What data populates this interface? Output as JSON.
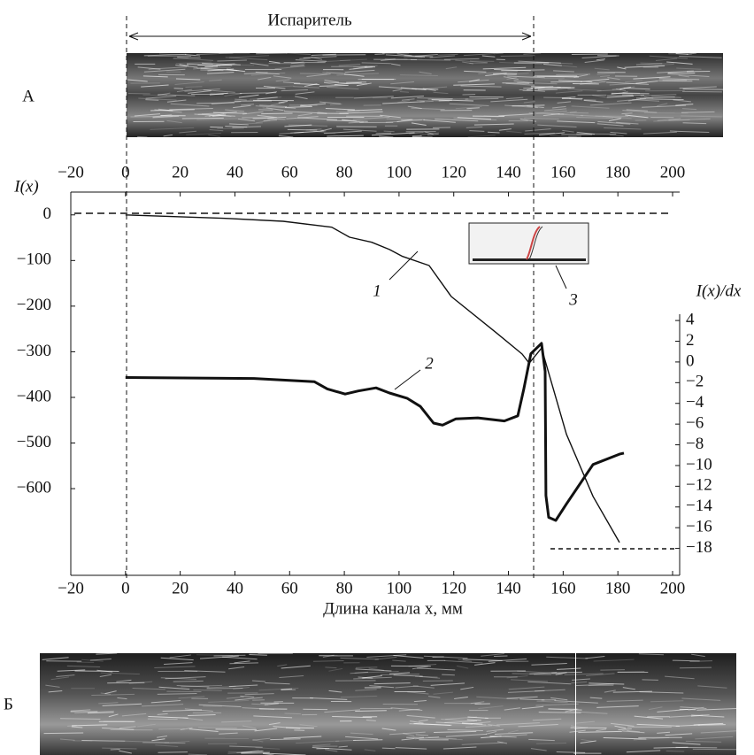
{
  "chart_data": {
    "type": "line",
    "evaporator_label": "Испаритель",
    "panel_top_label": "А",
    "panel_bottom_label": "Б",
    "annotations": [
      "3"
    ],
    "xlabel": "Длина канала x, мм",
    "ylabel": "I(x)",
    "y2label": "I(x)/dx",
    "xlim": [
      -20,
      200
    ],
    "xticks": [
      {
        "value": -20,
        "label": "−20"
      },
      0,
      20,
      40,
      60,
      80,
      100,
      120,
      140,
      160,
      180,
      200
    ],
    "x2ticks": [
      {
        "value": -20,
        "label": "−20"
      },
      0,
      20,
      40,
      60,
      80,
      100,
      120,
      140,
      160,
      180,
      200
    ],
    "ylim": [
      -790,
      50
    ],
    "yticks": [
      0,
      {
        "value": -100,
        "label": "−100"
      },
      {
        "value": -200,
        "label": "−200"
      },
      {
        "value": -300,
        "label": "−300"
      },
      {
        "value": -400,
        "label": "−400"
      },
      {
        "value": -500,
        "label": "−500"
      },
      {
        "value": -600,
        "label": "−600"
      }
    ],
    "y2lim": [
      -20.6,
      16.4
    ],
    "y2ticks": [
      4,
      2,
      0,
      {
        "value": -2,
        "label": "−2"
      },
      {
        "value": -4,
        "label": "−4"
      },
      {
        "value": -6,
        "label": "−6"
      },
      {
        "value": -8,
        "label": "−8"
      },
      {
        "value": -10,
        "label": "−10"
      },
      {
        "value": -12,
        "label": "−12"
      },
      {
        "value": -14,
        "label": "−14"
      },
      {
        "value": -16,
        "label": "−16"
      },
      {
        "value": -18,
        "label": "−18"
      }
    ],
    "series": [
      {
        "name": "1",
        "color": "#111111",
        "x": [
          0,
          18.8,
          38.2,
          57.6,
          75.4,
          81.9,
          90.0,
          96.5,
          101.3,
          111.0,
          119.1,
          135.3,
          145.0,
          147.6,
          152.1,
          161.2,
          170.9,
          180.6
        ],
        "values": [
          0,
          -4,
          -8,
          -14,
          -27,
          -49,
          -60,
          -76,
          -91,
          -111,
          -179,
          -257,
          -305,
          -325,
          -292,
          -481,
          -617,
          -718
        ]
      },
      {
        "name": "2",
        "color": "#111111",
        "axis": "y2",
        "x": [
          0,
          47,
          69,
          73.8,
          80.3,
          85.1,
          91.6,
          96.5,
          102.9,
          107.8,
          112.6,
          115.9,
          120.7,
          128.8,
          138.5,
          143.4,
          145.6,
          148.2,
          152.1,
          153.4,
          153.7,
          154.7,
          157.3,
          161.2,
          170.9,
          180.6,
          182.2
        ],
        "values": [
          -1.5,
          -1.6,
          -1.9,
          -2.6,
          -3.1,
          -2.8,
          -2.5,
          -3.0,
          -3.5,
          -4.3,
          -5.9,
          -6.1,
          -5.5,
          -5.4,
          -5.7,
          -5.2,
          -2.6,
          0.8,
          1.8,
          -0.9,
          -12.9,
          -15.0,
          -15.3,
          -13.7,
          -9.9,
          -8.9,
          -8.8
        ]
      }
    ]
  }
}
